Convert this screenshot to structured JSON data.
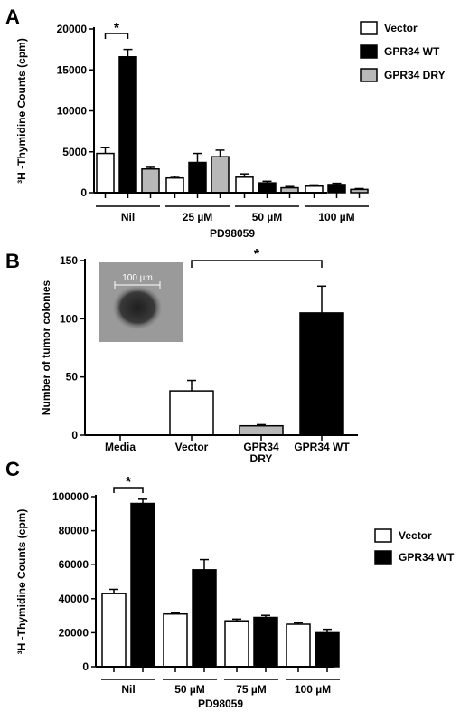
{
  "figure": {
    "panels": [
      {
        "letter": "A"
      },
      {
        "letter": "B"
      },
      {
        "letter": "C"
      }
    ]
  },
  "chart_data": [
    {
      "type": "bar",
      "panel": "A",
      "ylabel": "³H -Thymidine Counts (cpm)",
      "xlabel": "PD98059",
      "ylim": [
        0,
        20000
      ],
      "yticks": [
        0,
        5000,
        10000,
        15000,
        20000
      ],
      "categories": [
        "Nil",
        "25 µM",
        "50 µM",
        "100 µM"
      ],
      "series": [
        {
          "name": "Vector",
          "color": "#ffffff",
          "values": [
            4800,
            1800,
            1900,
            800
          ],
          "errors": [
            700,
            200,
            400,
            150
          ]
        },
        {
          "name": "GPR34 WT",
          "color": "#000000",
          "values": [
            16600,
            3700,
            1200,
            1000
          ],
          "errors": [
            900,
            1100,
            200,
            150
          ]
        },
        {
          "name": "GPR34 DRY",
          "color": "#b8b8b8",
          "values": [
            2900,
            4400,
            600,
            400
          ],
          "errors": [
            200,
            800,
            150,
            100
          ]
        }
      ],
      "legend": {
        "position": "right",
        "entries": [
          "Vector",
          "GPR34 WT",
          "GPR34 DRY"
        ]
      },
      "annotations": [
        {
          "text": "*",
          "between": [
            "Nil:Vector",
            "Nil:GPR34 WT"
          ]
        }
      ]
    },
    {
      "type": "bar",
      "panel": "B",
      "ylabel": "Number of tumor colonies",
      "ylim": [
        0,
        150
      ],
      "yticks": [
        0,
        50,
        100,
        150
      ],
      "categories": [
        "Media",
        "Vector",
        "GPR34 DRY",
        "GPR34 WT"
      ],
      "category_lines": [
        [
          "Media"
        ],
        [
          "Vector"
        ],
        [
          "GPR34",
          "DRY"
        ],
        [
          "GPR34 WT"
        ]
      ],
      "values": [
        0,
        38,
        8,
        105
      ],
      "errors": [
        0,
        9,
        1,
        23
      ],
      "colors": [
        "#ffffff",
        "#ffffff",
        "#b8b8b8",
        "#000000"
      ],
      "inset": {
        "scale_label": "100 µm"
      },
      "annotations": [
        {
          "text": "*",
          "between": [
            "Vector",
            "GPR34 WT"
          ]
        }
      ]
    },
    {
      "type": "bar",
      "panel": "C",
      "ylabel": "³H -Thymidine Counts (cpm)",
      "xlabel": "PD98059",
      "ylim": [
        0,
        100000
      ],
      "yticks": [
        0,
        20000,
        40000,
        60000,
        80000,
        100000
      ],
      "categories": [
        "Nil",
        "50 µM",
        "75 µM",
        "100 µM"
      ],
      "series": [
        {
          "name": "Vector",
          "color": "#ffffff",
          "values": [
            43000,
            31000,
            27000,
            25000
          ],
          "errors": [
            2500,
            600,
            1000,
            800
          ]
        },
        {
          "name": "GPR34 WT",
          "color": "#000000",
          "values": [
            96000,
            57000,
            29000,
            20000
          ],
          "errors": [
            2500,
            6000,
            1200,
            2000
          ]
        }
      ],
      "legend": {
        "position": "right",
        "entries": [
          "Vector",
          "GPR34 WT"
        ]
      },
      "annotations": [
        {
          "text": "*",
          "between": [
            "Nil:Vector",
            "Nil:GPR34 WT"
          ]
        }
      ]
    }
  ]
}
